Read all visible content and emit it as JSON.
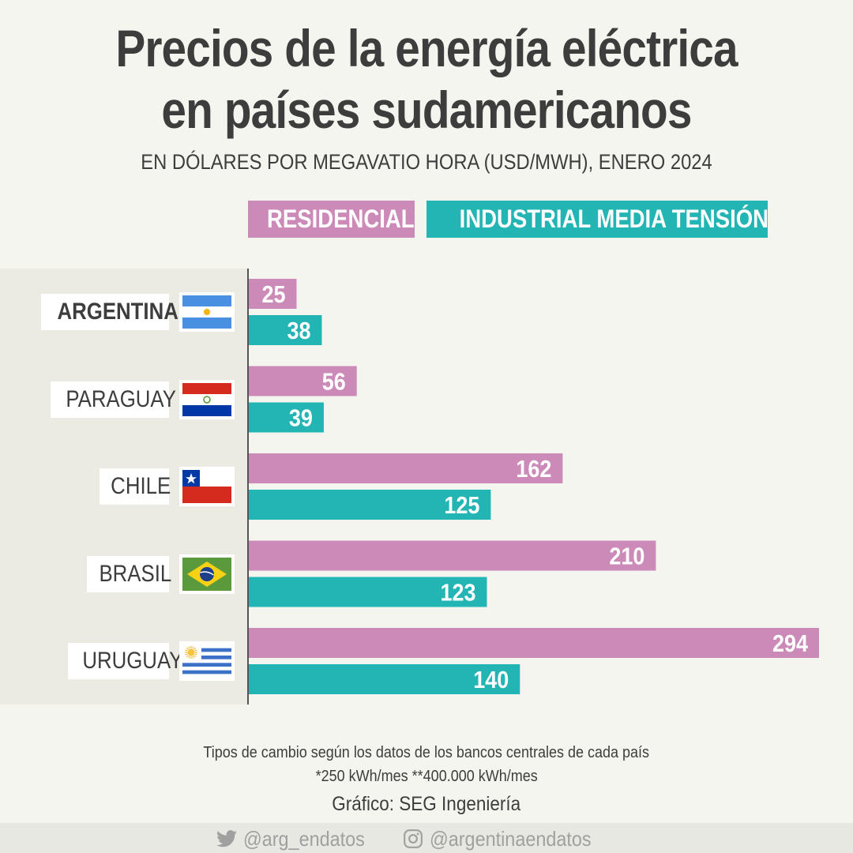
{
  "header": {
    "title_line1": "Precios de la energía eléctrica",
    "title_line2": "en países sudamericanos",
    "subtitle": "EN DÓLARES POR MEGAVATIO HORA (USD/MWH), ENERO 2024"
  },
  "legend": {
    "residential": "RESIDENCIAL*",
    "industrial": "INDUSTRIAL MEDIA TENSIÓN**"
  },
  "colors": {
    "residential": "#cc8ab9",
    "industrial": "#22b5b3",
    "axis": "#555555"
  },
  "chart_data": {
    "type": "bar",
    "orientation": "horizontal",
    "categories": [
      "ARGENTINA",
      "PARAGUAY",
      "CHILE",
      "BRASIL",
      "URUGUAY"
    ],
    "highlight": "ARGENTINA",
    "series": [
      {
        "name": "RESIDENCIAL*",
        "values": [
          25,
          56,
          162,
          210,
          294
        ]
      },
      {
        "name": "INDUSTRIAL MEDIA TENSIÓN**",
        "values": [
          38,
          39,
          125,
          123,
          140
        ]
      }
    ],
    "xlim": [
      0,
      294
    ],
    "grid": false,
    "data_labels": true
  },
  "flags": [
    "argentina-flag-icon",
    "paraguay-flag-icon",
    "chile-flag-icon",
    "brasil-flag-icon",
    "uruguay-flag-icon"
  ],
  "notes": {
    "line1": "Tipos de cambio según los datos de los bancos centrales de cada país",
    "line2": "*250 kWh/mes  **400.000 kWh/mes",
    "credit": "Gráfico: SEG Ingeniería"
  },
  "footer": {
    "twitter": "@arg_endatos",
    "instagram": "@argentinaendatos"
  }
}
